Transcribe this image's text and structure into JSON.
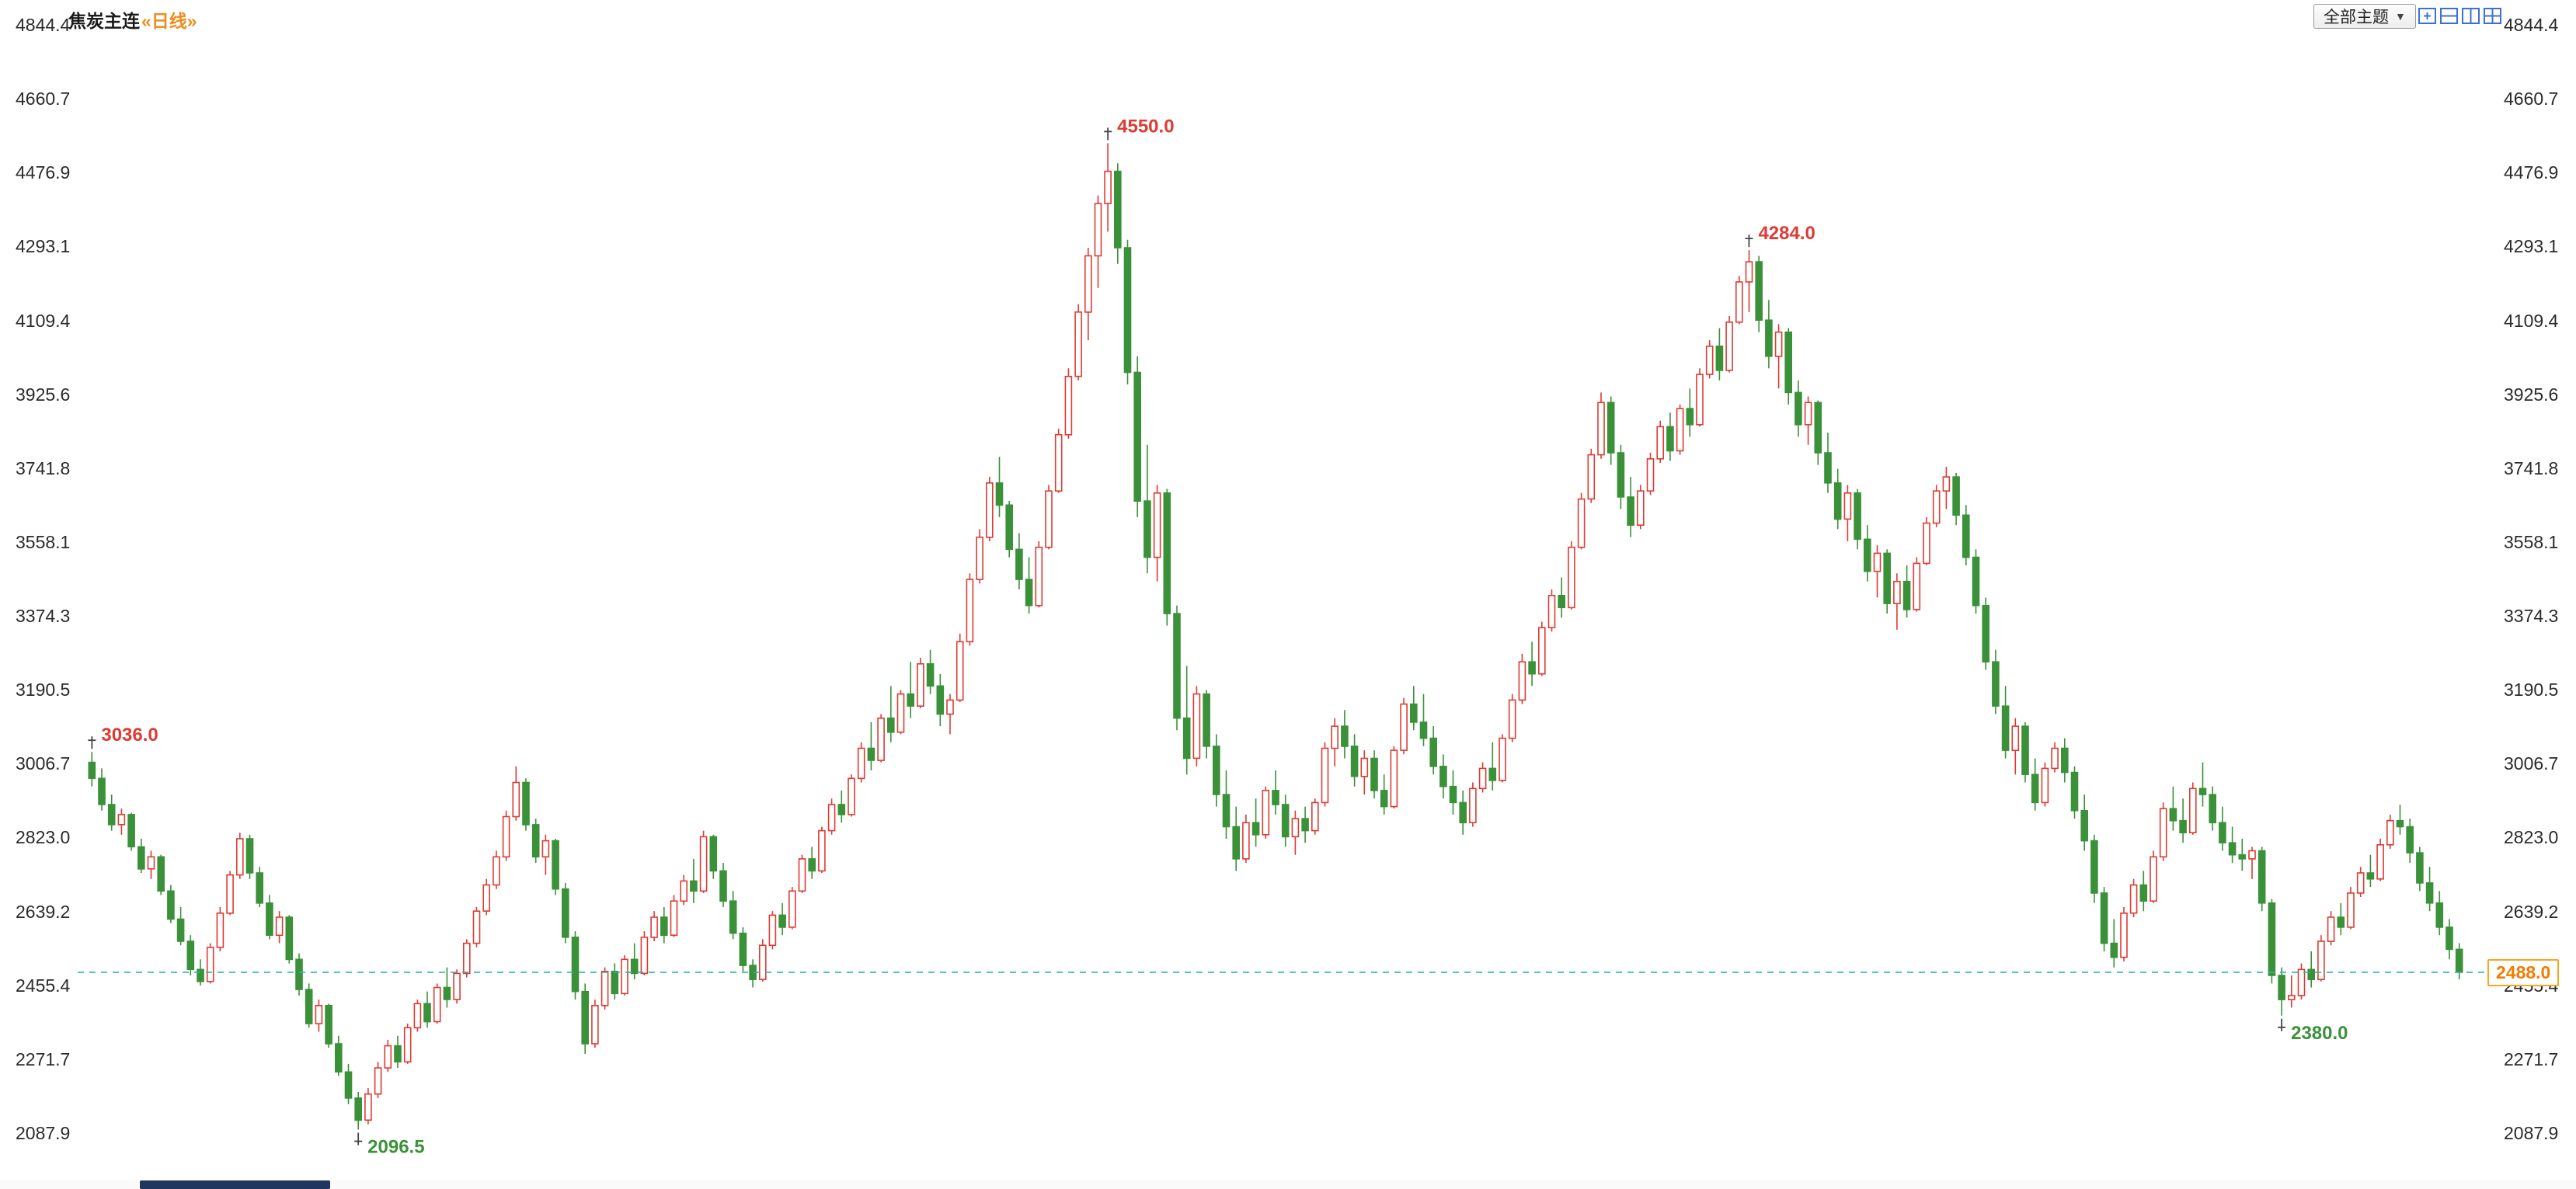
{
  "header": {
    "symbol": "焦炭主连",
    "period": "«日线»"
  },
  "toolbar": {
    "theme_label": "全部主题",
    "arrow": "▼",
    "icons": [
      "add-pane-icon",
      "rows-layout-icon",
      "columns-layout-icon",
      "grid-layout-icon"
    ]
  },
  "colors": {
    "up": "#dd3b33",
    "down": "#3a9139",
    "current_line": "#2ab5ad",
    "tag_text": "#f07d00",
    "tag_border": "#f5a623",
    "axis_text": "#2a2a2a",
    "icon_blue": "#3f6fd1",
    "scrollbar_thumb": "#20365e"
  },
  "y_axis": {
    "labels": [
      "4844.4",
      "4660.7",
      "4476.9",
      "4293.1",
      "4109.4",
      "3925.6",
      "3741.8",
      "3558.1",
      "3374.3",
      "3190.5",
      "3006.7",
      "2823.0",
      "2639.2",
      "2455.4",
      "2271.7",
      "2087.9"
    ]
  },
  "price_tag": {
    "text": "2488.0"
  },
  "chart_data": {
    "type": "candlestick",
    "title": "焦炭主连 日线",
    "ylim": [
      2087.9,
      4844.4
    ],
    "y_ticks": [
      4844.4,
      4660.7,
      4476.9,
      4293.1,
      4109.4,
      3925.6,
      3741.8,
      3558.1,
      3374.3,
      3190.5,
      3006.7,
      2823.0,
      2639.2,
      2455.4,
      2271.7,
      2087.9
    ],
    "grid": false,
    "current_price": 2488.0,
    "annotations": [
      {
        "text": "3036.0",
        "price": 3036.0,
        "index": 0,
        "side": "high"
      },
      {
        "text": "2096.5",
        "price": 2096.5,
        "index": 27,
        "side": "low"
      },
      {
        "text": "4550.0",
        "price": 4550.0,
        "index": 103,
        "side": "high"
      },
      {
        "text": "4284.0",
        "price": 4284.0,
        "index": 168,
        "side": "high"
      },
      {
        "text": "2380.0",
        "price": 2380.0,
        "index": 222,
        "side": "low"
      }
    ],
    "candles": [
      [
        3010,
        3036,
        2950,
        2970
      ],
      [
        2970,
        2995,
        2890,
        2905
      ],
      [
        2905,
        2930,
        2840,
        2855
      ],
      [
        2855,
        2895,
        2830,
        2880
      ],
      [
        2880,
        2885,
        2790,
        2800
      ],
      [
        2800,
        2820,
        2735,
        2745
      ],
      [
        2745,
        2790,
        2720,
        2775
      ],
      [
        2775,
        2780,
        2680,
        2690
      ],
      [
        2690,
        2705,
        2610,
        2620
      ],
      [
        2620,
        2650,
        2555,
        2565
      ],
      [
        2565,
        2580,
        2480,
        2495
      ],
      [
        2495,
        2520,
        2455,
        2465
      ],
      [
        2465,
        2560,
        2460,
        2550
      ],
      [
        2550,
        2650,
        2540,
        2635
      ],
      [
        2635,
        2740,
        2630,
        2730
      ],
      [
        2730,
        2835,
        2720,
        2820
      ],
      [
        2820,
        2830,
        2720,
        2735
      ],
      [
        2735,
        2750,
        2650,
        2660
      ],
      [
        2660,
        2680,
        2570,
        2580
      ],
      [
        2580,
        2640,
        2560,
        2625
      ],
      [
        2625,
        2630,
        2510,
        2520
      ],
      [
        2520,
        2535,
        2430,
        2445
      ],
      [
        2445,
        2460,
        2350,
        2360
      ],
      [
        2360,
        2420,
        2340,
        2405
      ],
      [
        2405,
        2410,
        2300,
        2310
      ],
      [
        2310,
        2330,
        2230,
        2240
      ],
      [
        2240,
        2260,
        2160,
        2175
      ],
      [
        2175,
        2190,
        2096.5,
        2120
      ],
      [
        2120,
        2200,
        2110,
        2185
      ],
      [
        2185,
        2265,
        2175,
        2250
      ],
      [
        2250,
        2320,
        2240,
        2305
      ],
      [
        2305,
        2330,
        2250,
        2265
      ],
      [
        2265,
        2360,
        2260,
        2350
      ],
      [
        2350,
        2420,
        2340,
        2410
      ],
      [
        2410,
        2440,
        2350,
        2365
      ],
      [
        2365,
        2460,
        2360,
        2450
      ],
      [
        2450,
        2500,
        2400,
        2420
      ],
      [
        2420,
        2495,
        2410,
        2485
      ],
      [
        2485,
        2570,
        2475,
        2560
      ],
      [
        2560,
        2650,
        2550,
        2640
      ],
      [
        2640,
        2720,
        2630,
        2705
      ],
      [
        2705,
        2790,
        2695,
        2775
      ],
      [
        2775,
        2890,
        2765,
        2875
      ],
      [
        2875,
        3000,
        2865,
        2960
      ],
      [
        2960,
        2970,
        2840,
        2855
      ],
      [
        2855,
        2870,
        2760,
        2775
      ],
      [
        2775,
        2830,
        2730,
        2815
      ],
      [
        2815,
        2820,
        2680,
        2695
      ],
      [
        2695,
        2710,
        2560,
        2575
      ],
      [
        2575,
        2590,
        2420,
        2440
      ],
      [
        2440,
        2460,
        2285,
        2310
      ],
      [
        2310,
        2420,
        2300,
        2405
      ],
      [
        2405,
        2500,
        2395,
        2490
      ],
      [
        2490,
        2510,
        2420,
        2435
      ],
      [
        2435,
        2530,
        2430,
        2520
      ],
      [
        2520,
        2560,
        2470,
        2485
      ],
      [
        2485,
        2590,
        2480,
        2575
      ],
      [
        2575,
        2640,
        2565,
        2625
      ],
      [
        2625,
        2650,
        2560,
        2580
      ],
      [
        2580,
        2680,
        2575,
        2665
      ],
      [
        2665,
        2730,
        2655,
        2715
      ],
      [
        2715,
        2770,
        2660,
        2690
      ],
      [
        2690,
        2840,
        2685,
        2825
      ],
      [
        2825,
        2830,
        2720,
        2740
      ],
      [
        2740,
        2760,
        2650,
        2665
      ],
      [
        2665,
        2690,
        2570,
        2585
      ],
      [
        2585,
        2600,
        2490,
        2505
      ],
      [
        2505,
        2520,
        2450,
        2470
      ],
      [
        2470,
        2570,
        2465,
        2555
      ],
      [
        2555,
        2640,
        2545,
        2630
      ],
      [
        2630,
        2660,
        2580,
        2600
      ],
      [
        2600,
        2700,
        2595,
        2690
      ],
      [
        2690,
        2780,
        2685,
        2770
      ],
      [
        2770,
        2800,
        2720,
        2740
      ],
      [
        2740,
        2850,
        2735,
        2840
      ],
      [
        2840,
        2920,
        2830,
        2905
      ],
      [
        2905,
        2940,
        2860,
        2880
      ],
      [
        2880,
        2980,
        2875,
        2970
      ],
      [
        2970,
        3060,
        2960,
        3045
      ],
      [
        3045,
        3110,
        2990,
        3015
      ],
      [
        3015,
        3130,
        3010,
        3120
      ],
      [
        3120,
        3200,
        3060,
        3085
      ],
      [
        3085,
        3190,
        3080,
        3180
      ],
      [
        3180,
        3260,
        3120,
        3150
      ],
      [
        3150,
        3270,
        3145,
        3255
      ],
      [
        3255,
        3290,
        3180,
        3200
      ],
      [
        3200,
        3230,
        3100,
        3130
      ],
      [
        3130,
        3180,
        3080,
        3165
      ],
      [
        3165,
        3330,
        3160,
        3310
      ],
      [
        3310,
        3480,
        3300,
        3465
      ],
      [
        3465,
        3590,
        3455,
        3570
      ],
      [
        3570,
        3720,
        3560,
        3705
      ],
      [
        3705,
        3770,
        3620,
        3650
      ],
      [
        3650,
        3660,
        3520,
        3540
      ],
      [
        3540,
        3580,
        3440,
        3465
      ],
      [
        3465,
        3520,
        3380,
        3400
      ],
      [
        3400,
        3560,
        3395,
        3545
      ],
      [
        3545,
        3700,
        3540,
        3685
      ],
      [
        3685,
        3840,
        3680,
        3825
      ],
      [
        3825,
        3990,
        3815,
        3970
      ],
      [
        3970,
        4150,
        3960,
        4130
      ],
      [
        4130,
        4290,
        4060,
        4270
      ],
      [
        4270,
        4420,
        4190,
        4400
      ],
      [
        4400,
        4550,
        4330,
        4480
      ],
      [
        4480,
        4500,
        4250,
        4290
      ],
      [
        4290,
        4310,
        3950,
        3980
      ],
      [
        3980,
        4020,
        3620,
        3660
      ],
      [
        3660,
        3800,
        3480,
        3520
      ],
      [
        3520,
        3700,
        3460,
        3680
      ],
      [
        3680,
        3690,
        3350,
        3380
      ],
      [
        3380,
        3400,
        3090,
        3120
      ],
      [
        3120,
        3250,
        2980,
        3020
      ],
      [
        3020,
        3200,
        3000,
        3180
      ],
      [
        3180,
        3190,
        3020,
        3050
      ],
      [
        3050,
        3080,
        2900,
        2930
      ],
      [
        2930,
        2990,
        2820,
        2850
      ],
      [
        2850,
        2900,
        2740,
        2770
      ],
      [
        2770,
        2880,
        2760,
        2860
      ],
      [
        2860,
        2920,
        2800,
        2830
      ],
      [
        2830,
        2950,
        2820,
        2940
      ],
      [
        2940,
        2990,
        2880,
        2905
      ],
      [
        2905,
        2930,
        2800,
        2825
      ],
      [
        2825,
        2890,
        2780,
        2870
      ],
      [
        2870,
        2900,
        2810,
        2840
      ],
      [
        2840,
        2920,
        2830,
        2910
      ],
      [
        2910,
        3060,
        2900,
        3045
      ],
      [
        3045,
        3120,
        3000,
        3100
      ],
      [
        3100,
        3140,
        3020,
        3050
      ],
      [
        3050,
        3080,
        2950,
        2975
      ],
      [
        2975,
        3040,
        2930,
        3020
      ],
      [
        3020,
        3040,
        2920,
        2940
      ],
      [
        2940,
        2980,
        2880,
        2900
      ],
      [
        2900,
        3050,
        2895,
        3040
      ],
      [
        3040,
        3170,
        3030,
        3155
      ],
      [
        3155,
        3200,
        3090,
        3110
      ],
      [
        3110,
        3180,
        3050,
        3070
      ],
      [
        3070,
        3100,
        2980,
        3000
      ],
      [
        3000,
        3030,
        2920,
        2950
      ],
      [
        2950,
        2990,
        2880,
        2910
      ],
      [
        2910,
        2940,
        2830,
        2860
      ],
      [
        2860,
        2960,
        2850,
        2945
      ],
      [
        2945,
        3010,
        2935,
        2995
      ],
      [
        2995,
        3060,
        2940,
        2965
      ],
      [
        2965,
        3080,
        2960,
        3070
      ],
      [
        3070,
        3180,
        3060,
        3165
      ],
      [
        3165,
        3280,
        3155,
        3260
      ],
      [
        3260,
        3310,
        3200,
        3230
      ],
      [
        3230,
        3360,
        3225,
        3345
      ],
      [
        3345,
        3440,
        3335,
        3425
      ],
      [
        3425,
        3470,
        3370,
        3395
      ],
      [
        3395,
        3560,
        3390,
        3545
      ],
      [
        3545,
        3680,
        3540,
        3665
      ],
      [
        3665,
        3790,
        3655,
        3775
      ],
      [
        3775,
        3930,
        3765,
        3905
      ],
      [
        3905,
        3920,
        3750,
        3780
      ],
      [
        3780,
        3800,
        3640,
        3670
      ],
      [
        3670,
        3720,
        3570,
        3600
      ],
      [
        3600,
        3700,
        3590,
        3685
      ],
      [
        3685,
        3780,
        3675,
        3765
      ],
      [
        3765,
        3860,
        3755,
        3845
      ],
      [
        3845,
        3880,
        3760,
        3785
      ],
      [
        3785,
        3900,
        3775,
        3890
      ],
      [
        3890,
        3940,
        3820,
        3850
      ],
      [
        3850,
        3990,
        3845,
        3975
      ],
      [
        3975,
        4060,
        3965,
        4045
      ],
      [
        4045,
        4090,
        3960,
        3985
      ],
      [
        3985,
        4120,
        3980,
        4105
      ],
      [
        4105,
        4220,
        4100,
        4205
      ],
      [
        4205,
        4284,
        4130,
        4255
      ],
      [
        4255,
        4270,
        4080,
        4110
      ],
      [
        4110,
        4160,
        3990,
        4020
      ],
      [
        4020,
        4100,
        3940,
        4080
      ],
      [
        4080,
        4090,
        3900,
        3930
      ],
      [
        3930,
        3960,
        3820,
        3850
      ],
      [
        3850,
        3920,
        3800,
        3905
      ],
      [
        3905,
        3910,
        3750,
        3780
      ],
      [
        3780,
        3830,
        3680,
        3705
      ],
      [
        3705,
        3740,
        3590,
        3615
      ],
      [
        3615,
        3700,
        3560,
        3680
      ],
      [
        3680,
        3690,
        3540,
        3565
      ],
      [
        3565,
        3600,
        3460,
        3485
      ],
      [
        3485,
        3550,
        3420,
        3530
      ],
      [
        3530,
        3540,
        3380,
        3405
      ],
      [
        3405,
        3480,
        3340,
        3460
      ],
      [
        3460,
        3500,
        3370,
        3390
      ],
      [
        3390,
        3520,
        3385,
        3505
      ],
      [
        3505,
        3620,
        3500,
        3605
      ],
      [
        3605,
        3700,
        3595,
        3685
      ],
      [
        3685,
        3745,
        3640,
        3720
      ],
      [
        3720,
        3730,
        3600,
        3625
      ],
      [
        3625,
        3650,
        3500,
        3520
      ],
      [
        3520,
        3540,
        3380,
        3400
      ],
      [
        3400,
        3420,
        3240,
        3260
      ],
      [
        3260,
        3290,
        3130,
        3150
      ],
      [
        3150,
        3200,
        3020,
        3040
      ],
      [
        3040,
        3120,
        2980,
        3100
      ],
      [
        3100,
        3110,
        2960,
        2980
      ],
      [
        2980,
        3020,
        2890,
        2910
      ],
      [
        2910,
        3010,
        2900,
        2995
      ],
      [
        2995,
        3060,
        2985,
        3045
      ],
      [
        3045,
        3070,
        2960,
        2985
      ],
      [
        2985,
        3000,
        2870,
        2890
      ],
      [
        2890,
        2930,
        2790,
        2815
      ],
      [
        2815,
        2830,
        2660,
        2685
      ],
      [
        2685,
        2700,
        2540,
        2560
      ],
      [
        2560,
        2620,
        2500,
        2525
      ],
      [
        2525,
        2650,
        2515,
        2635
      ],
      [
        2635,
        2720,
        2625,
        2705
      ],
      [
        2705,
        2740,
        2640,
        2665
      ],
      [
        2665,
        2790,
        2660,
        2775
      ],
      [
        2775,
        2910,
        2765,
        2895
      ],
      [
        2895,
        2950,
        2840,
        2865
      ],
      [
        2865,
        2920,
        2810,
        2835
      ],
      [
        2835,
        2960,
        2830,
        2945
      ],
      [
        2945,
        3010,
        2900,
        2930
      ],
      [
        2930,
        2950,
        2840,
        2860
      ],
      [
        2860,
        2900,
        2790,
        2810
      ],
      [
        2810,
        2850,
        2760,
        2780
      ],
      [
        2780,
        2820,
        2740,
        2770
      ],
      [
        2770,
        2800,
        2720,
        2790
      ],
      [
        2790,
        2800,
        2640,
        2660
      ],
      [
        2660,
        2670,
        2460,
        2480
      ],
      [
        2480,
        2500,
        2380,
        2420
      ],
      [
        2420,
        2480,
        2400,
        2430
      ],
      [
        2430,
        2510,
        2420,
        2495
      ],
      [
        2495,
        2540,
        2450,
        2470
      ],
      [
        2470,
        2580,
        2465,
        2565
      ],
      [
        2565,
        2640,
        2555,
        2625
      ],
      [
        2625,
        2660,
        2580,
        2600
      ],
      [
        2600,
        2700,
        2595,
        2685
      ],
      [
        2685,
        2750,
        2675,
        2735
      ],
      [
        2735,
        2780,
        2700,
        2720
      ],
      [
        2720,
        2820,
        2715,
        2805
      ],
      [
        2805,
        2880,
        2795,
        2865
      ],
      [
        2865,
        2905,
        2830,
        2850
      ],
      [
        2850,
        2870,
        2760,
        2785
      ],
      [
        2785,
        2800,
        2690,
        2710
      ],
      [
        2710,
        2750,
        2640,
        2660
      ],
      [
        2660,
        2690,
        2580,
        2600
      ],
      [
        2600,
        2620,
        2520,
        2545
      ],
      [
        2545,
        2560,
        2470,
        2488
      ]
    ]
  }
}
